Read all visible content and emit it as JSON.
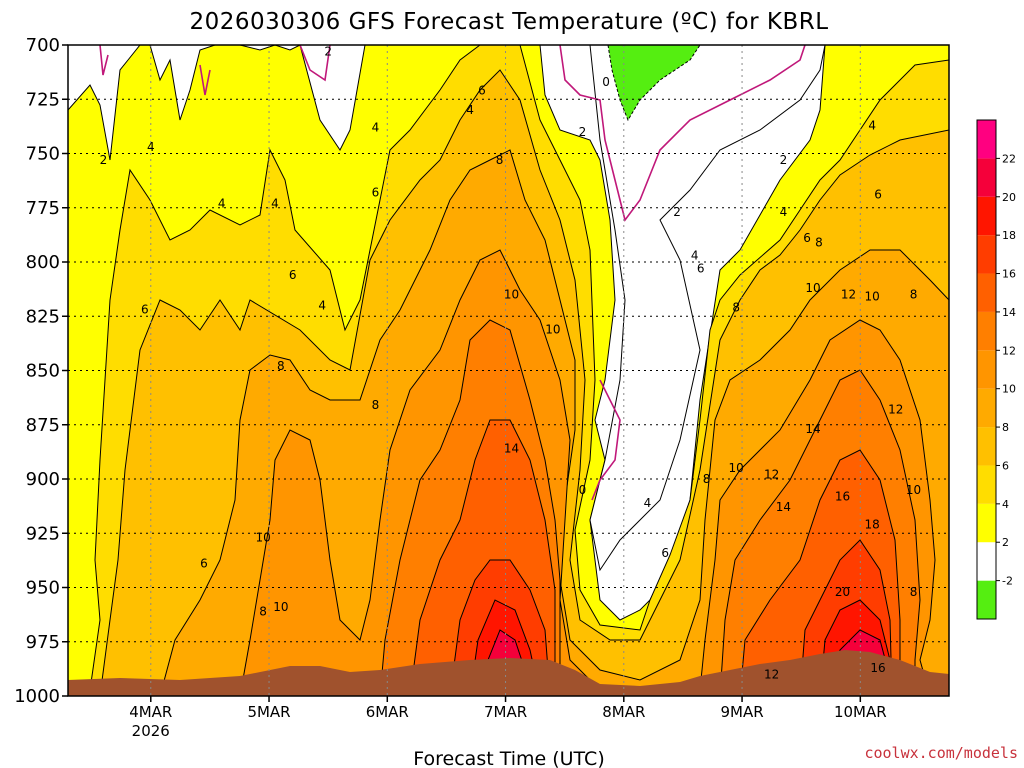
{
  "chart_data": {
    "type": "heatmap",
    "title": "2026030306 GFS Forecast Temperature (ºC) for KBRL",
    "xlabel": "Forecast Time (UTC)",
    "ylabel": "",
    "x_ticks": [
      "4MAR",
      "5MAR",
      "6MAR",
      "7MAR",
      "8MAR",
      "9MAR",
      "10MAR"
    ],
    "x_year_label": "2026",
    "x_range_days": [
      3.3,
      10.75
    ],
    "y_ticks": [
      700,
      725,
      750,
      775,
      800,
      825,
      850,
      875,
      900,
      925,
      950,
      975,
      1000
    ],
    "y_range_mb": [
      700,
      1000
    ],
    "y_reversed": true,
    "grid": "dotted",
    "credit": "coolwx.com/models",
    "colorbar": {
      "bounds": [
        -4,
        -2,
        2,
        4,
        6,
        8,
        10,
        12,
        14,
        16,
        18,
        20,
        22,
        24
      ],
      "tick_labels": [
        "-2",
        "2",
        "4",
        "6",
        "8",
        "10",
        "12",
        "14",
        "16",
        "18",
        "20",
        "22"
      ],
      "colors": [
        "#55ee11",
        "#ffffff",
        "#ffff00",
        "#ffdd00",
        "#ffc000",
        "#ffaa00",
        "#ff9500",
        "#ff7f00",
        "#ff6000",
        "#ff3d00",
        "#ff1500",
        "#f5003a",
        "#ff0080"
      ]
    },
    "contour_labels": [
      {
        "text": "2",
        "x": 3.6,
        "y": 753
      },
      {
        "text": "4",
        "x": 4.0,
        "y": 747
      },
      {
        "text": "2",
        "x": 5.5,
        "y": 703
      },
      {
        "text": "4",
        "x": 4.6,
        "y": 773
      },
      {
        "text": "4",
        "x": 5.05,
        "y": 773
      },
      {
        "text": "6",
        "x": 3.95,
        "y": 822
      },
      {
        "text": "6",
        "x": 5.2,
        "y": 806
      },
      {
        "text": "4",
        "x": 5.45,
        "y": 820
      },
      {
        "text": "4",
        "x": 5.9,
        "y": 738
      },
      {
        "text": "6",
        "x": 5.9,
        "y": 768
      },
      {
        "text": "4",
        "x": 6.7,
        "y": 730
      },
      {
        "text": "6",
        "x": 6.8,
        "y": 721
      },
      {
        "text": "8",
        "x": 6.95,
        "y": 753
      },
      {
        "text": "8",
        "x": 5.1,
        "y": 848
      },
      {
        "text": "8",
        "x": 5.9,
        "y": 866
      },
      {
        "text": "10",
        "x": 7.05,
        "y": 815
      },
      {
        "text": "10",
        "x": 7.4,
        "y": 831
      },
      {
        "text": "14",
        "x": 7.05,
        "y": 886
      },
      {
        "text": "10",
        "x": 4.95,
        "y": 927
      },
      {
        "text": "6",
        "x": 4.45,
        "y": 939
      },
      {
        "text": "8",
        "x": 4.95,
        "y": 961
      },
      {
        "text": "10",
        "x": 5.1,
        "y": 959
      },
      {
        "text": "0",
        "x": 7.85,
        "y": 717
      },
      {
        "text": "2",
        "x": 7.65,
        "y": 740
      },
      {
        "text": "0",
        "x": 7.65,
        "y": 905
      },
      {
        "text": "4",
        "x": 8.2,
        "y": 911
      },
      {
        "text": "6",
        "x": 8.35,
        "y": 934
      },
      {
        "text": "2",
        "x": 8.45,
        "y": 777
      },
      {
        "text": "2",
        "x": 9.35,
        "y": 753
      },
      {
        "text": "4",
        "x": 9.35,
        "y": 777
      },
      {
        "text": "4",
        "x": 8.6,
        "y": 797
      },
      {
        "text": "6",
        "x": 8.65,
        "y": 803
      },
      {
        "text": "6",
        "x": 9.55,
        "y": 789
      },
      {
        "text": "8",
        "x": 9.65,
        "y": 791
      },
      {
        "text": "6",
        "x": 10.15,
        "y": 769
      },
      {
        "text": "4",
        "x": 10.1,
        "y": 737
      },
      {
        "text": "8",
        "x": 8.95,
        "y": 821
      },
      {
        "text": "10",
        "x": 9.6,
        "y": 812
      },
      {
        "text": "12",
        "x": 9.9,
        "y": 815
      },
      {
        "text": "10",
        "x": 10.1,
        "y": 816
      },
      {
        "text": "8",
        "x": 10.45,
        "y": 815
      },
      {
        "text": "14",
        "x": 9.6,
        "y": 877
      },
      {
        "text": "12",
        "x": 10.3,
        "y": 868
      },
      {
        "text": "8",
        "x": 8.7,
        "y": 900
      },
      {
        "text": "10",
        "x": 8.95,
        "y": 895
      },
      {
        "text": "12",
        "x": 9.25,
        "y": 898
      },
      {
        "text": "16",
        "x": 9.85,
        "y": 908
      },
      {
        "text": "14",
        "x": 9.35,
        "y": 913
      },
      {
        "text": "10",
        "x": 10.45,
        "y": 905
      },
      {
        "text": "18",
        "x": 10.1,
        "y": 921
      },
      {
        "text": "20",
        "x": 9.85,
        "y": 952
      },
      {
        "text": "8",
        "x": 10.45,
        "y": 952
      },
      {
        "text": "12",
        "x": 9.25,
        "y": 990
      },
      {
        "text": "16",
        "x": 10.15,
        "y": 987
      }
    ]
  }
}
